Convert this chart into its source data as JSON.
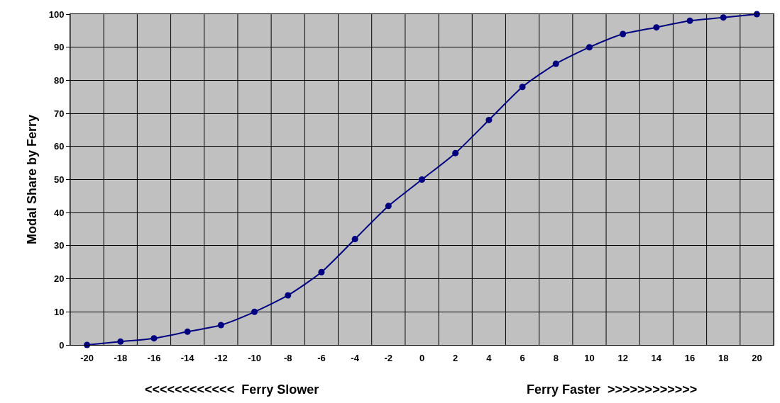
{
  "chart_data": {
    "type": "line",
    "ylabel": "Modal Share by Ferry",
    "categories": [
      "-20",
      "-18",
      "-16",
      "-14",
      "-12",
      "-10",
      "-8",
      "-6",
      "-4",
      "-2",
      "0",
      "2",
      "4",
      "6",
      "8",
      "10",
      "12",
      "14",
      "16",
      "18",
      "20"
    ],
    "series": [
      {
        "color": "#000080",
        "values": [
          0,
          1,
          2,
          4,
          6,
          10,
          15,
          22,
          32,
          42,
          50,
          58,
          68,
          78,
          85,
          90,
          94,
          96,
          98,
          99,
          100
        ]
      }
    ],
    "ylim": [
      0,
      100
    ],
    "yticks": [
      0,
      10,
      20,
      30,
      40,
      50,
      60,
      70,
      80,
      90,
      100
    ],
    "grid": true,
    "legend": false,
    "marker": "circle",
    "line_style": "solid",
    "annotations": [
      "<<<<<<<<<<<<  Ferry Slower",
      "Ferry Faster  >>>>>>>>>>>>"
    ]
  }
}
